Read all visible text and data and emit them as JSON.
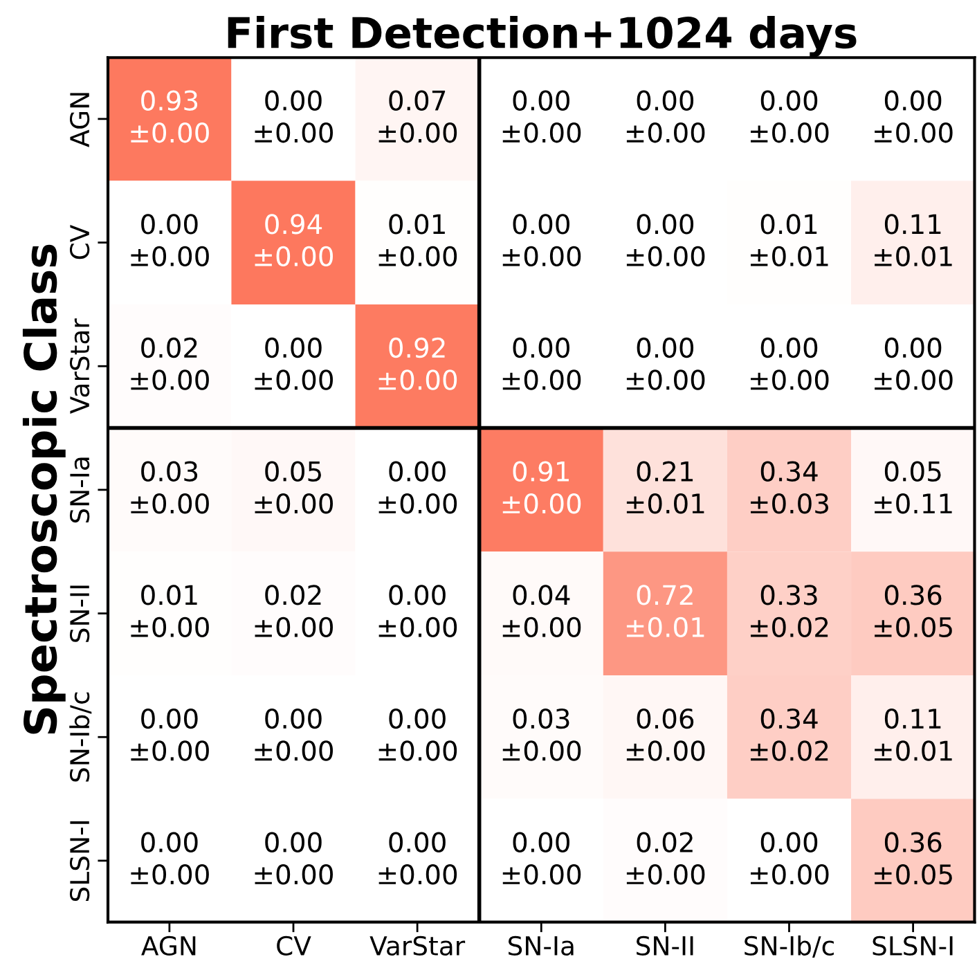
{
  "chart_data": {
    "type": "heatmap",
    "title": "First Detection+1024 days",
    "ylabel": "Spectroscopic Class",
    "categories": [
      "AGN",
      "CV",
      "VarStar",
      "SN-Ia",
      "SN-II",
      "SN-Ib/c",
      "SLSN-I"
    ],
    "y_categories": [
      "AGN",
      "CV",
      "VarStar",
      "SN-Ia",
      "SN-II",
      "SN-Ib/c",
      "SLSN-I"
    ],
    "cells": [
      [
        0.93,
        0.0,
        0.07,
        0.0,
        0.0,
        0.0,
        0.0
      ],
      [
        0.0,
        0.94,
        0.01,
        0.0,
        0.0,
        0.01,
        0.11
      ],
      [
        0.02,
        0.0,
        0.92,
        0.0,
        0.0,
        0.0,
        0.0
      ],
      [
        0.03,
        0.05,
        0.0,
        0.91,
        0.21,
        0.34,
        0.05
      ],
      [
        0.01,
        0.02,
        0.0,
        0.04,
        0.72,
        0.33,
        0.36
      ],
      [
        0.0,
        0.0,
        0.0,
        0.03,
        0.06,
        0.34,
        0.11
      ],
      [
        0.0,
        0.0,
        0.0,
        0.0,
        0.02,
        0.0,
        0.36
      ]
    ],
    "cell_labels": [
      [
        "0.93",
        "0.00",
        "0.07",
        "0.00",
        "0.00",
        "0.00",
        "0.00"
      ],
      [
        "0.00",
        "0.94",
        "0.01",
        "0.00",
        "0.00",
        "0.01",
        "0.11"
      ],
      [
        "0.02",
        "0.00",
        "0.92",
        "0.00",
        "0.00",
        "0.00",
        "0.00"
      ],
      [
        "0.03",
        "0.05",
        "0.00",
        "0.91",
        "0.21",
        "0.34",
        "0.05"
      ],
      [
        "0.01",
        "0.02",
        "0.00",
        "0.04",
        "0.72",
        "0.33",
        "0.36"
      ],
      [
        "0.00",
        "0.00",
        "0.00",
        "0.03",
        "0.06",
        "0.34",
        "0.11"
      ],
      [
        "0.00",
        "0.00",
        "0.00",
        "0.00",
        "0.02",
        "0.00",
        "0.36"
      ]
    ],
    "annotations": [
      "±0.00",
      "±0.00",
      "±0.00",
      "±0.00",
      "±0.00",
      "±0.00",
      "±0.00",
      "±0.00",
      "±0.00",
      "±0.00",
      "±0.00",
      "±0.00",
      "±0.01",
      "±0.01",
      "±0.00",
      "±0.00",
      "±0.00",
      "±0.00",
      "±0.00",
      "±0.00",
      "±0.00",
      "±0.00",
      "±0.00",
      "±0.00",
      "±0.00",
      "±0.01",
      "±0.03",
      "±0.11",
      "±0.00",
      "±0.00",
      "±0.00",
      "±0.00",
      "±0.01",
      "±0.02",
      "±0.05",
      "±0.00",
      "±0.00",
      "±0.00",
      "±0.00",
      "±0.00",
      "±0.02",
      "±0.01",
      "±0.00",
      "±0.00",
      "±0.00",
      "±0.00",
      "±0.00",
      "±0.00",
      "±0.05"
    ]
  }
}
